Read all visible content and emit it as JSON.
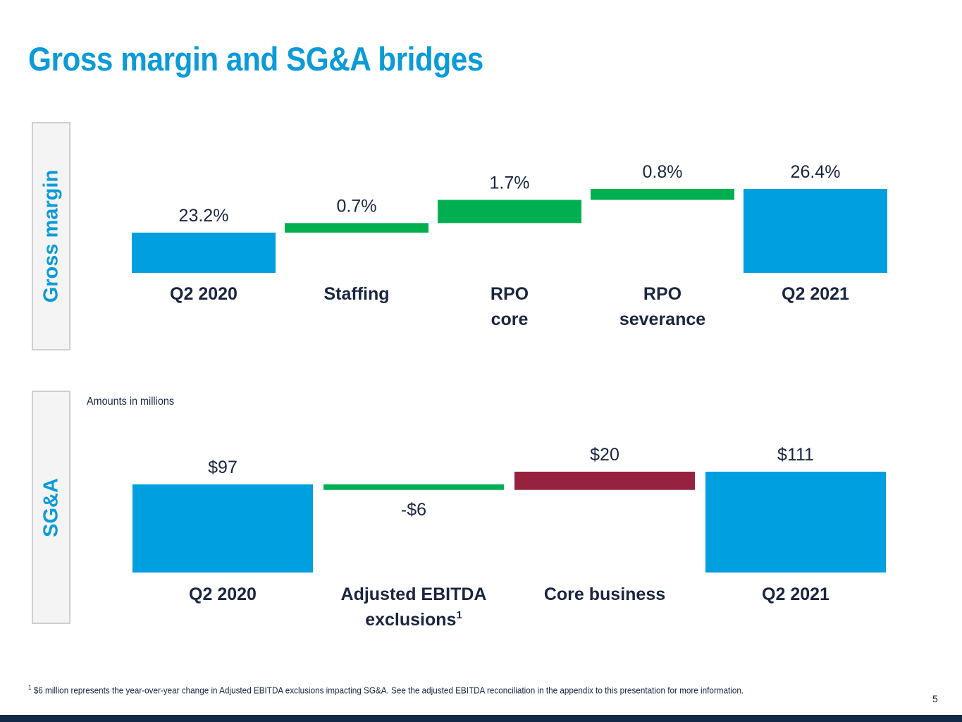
{
  "page": {
    "title": "Gross margin and SG&A bridges",
    "page_number": "5",
    "footnote_marker": "1",
    "footnote": "$6 million represents the year-over-year change in Adjusted EBITDA exclusions impacting SG&A. See the adjusted EBITDA reconciliation in the appendix to this presentation for more information.",
    "sga_note": "Amounts in millions"
  },
  "colors": {
    "accent": "#0a9bd8",
    "total": "#009fdf",
    "increase": "#00b050",
    "cost_increase": "#972240",
    "text": "#1a2540",
    "footer_bar": "#132a47"
  },
  "chart_data": [
    {
      "type": "bar",
      "subtype": "waterfall",
      "section_label": "Gross margin",
      "title": "Gross margin bridge",
      "xlabel": "",
      "ylabel": "Gross margin (%)",
      "ylim": [
        20.25,
        26.4
      ],
      "grid": false,
      "categories": [
        [
          "Q2 2020"
        ],
        [
          "Staffing"
        ],
        [
          "RPO",
          "core"
        ],
        [
          "RPO",
          "severance"
        ],
        [
          "Q2 2021"
        ]
      ],
      "values": [
        23.2,
        0.7,
        1.7,
        0.8,
        26.4
      ],
      "kinds": [
        "total",
        "delta",
        "delta",
        "delta",
        "total"
      ],
      "bar_colors": [
        "#009fdf",
        "#00b050",
        "#00b050",
        "#00b050",
        "#009fdf"
      ],
      "data_labels": [
        "23.2%",
        "0.7%",
        "1.7%",
        "0.8%",
        "26.4%"
      ]
    },
    {
      "type": "bar",
      "subtype": "waterfall",
      "section_label": "SG&A",
      "title": "SG&A bridge",
      "xlabel": "",
      "ylabel": "SG&A ($ millions)",
      "ylim": [
        0,
        111
      ],
      "grid": false,
      "categories": [
        [
          "Q2 2020"
        ],
        [
          "Adjusted EBITDA",
          "exclusions"
        ],
        [
          "Core business"
        ],
        [
          "Q2 2021"
        ]
      ],
      "category_superscripts": [
        "",
        "1",
        "",
        ""
      ],
      "values": [
        97,
        -6,
        20,
        111
      ],
      "kinds": [
        "total",
        "delta",
        "delta",
        "total"
      ],
      "bar_colors": [
        "#009fdf",
        "#00b050",
        "#972240",
        "#009fdf"
      ],
      "data_labels": [
        "$97",
        "-$6",
        "$20",
        "$111"
      ]
    }
  ]
}
